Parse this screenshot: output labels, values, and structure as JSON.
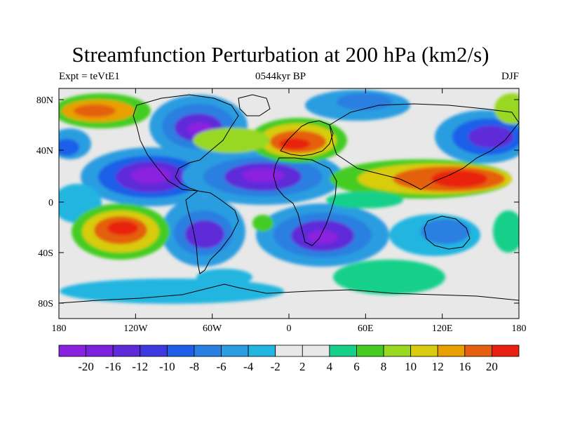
{
  "title": "Streamfunction Perturbation at 200 hPa (km2/s)",
  "left_string": "Expt = teVtE1",
  "center_string": "0544kyr BP",
  "right_string": "DJF",
  "map": {
    "lat_ticks": [
      "80N",
      "40N",
      "0",
      "40S",
      "80S"
    ],
    "lon_ticks": [
      "180",
      "120W",
      "60W",
      "0",
      "60E",
      "120E",
      "180"
    ],
    "background_color": "#e8e8e8",
    "coast_color": "#000000"
  },
  "colorbar": {
    "labels": [
      "-20",
      "-16",
      "-12",
      "-10",
      "-8",
      "-6",
      "-4",
      "-2",
      "2",
      "4",
      "6",
      "8",
      "10",
      "12",
      "16",
      "20"
    ],
    "colors": [
      "#8a20e0",
      "#7a22de",
      "#5f2ad8",
      "#3f3ae0",
      "#1e5ee8",
      "#2a7fe0",
      "#2b9de0",
      "#22b5e0",
      "#e8e8e8",
      "#18d08a",
      "#44cc22",
      "#99d820",
      "#d8cc10",
      "#e8a000",
      "#e46010",
      "#e82010"
    ]
  }
}
